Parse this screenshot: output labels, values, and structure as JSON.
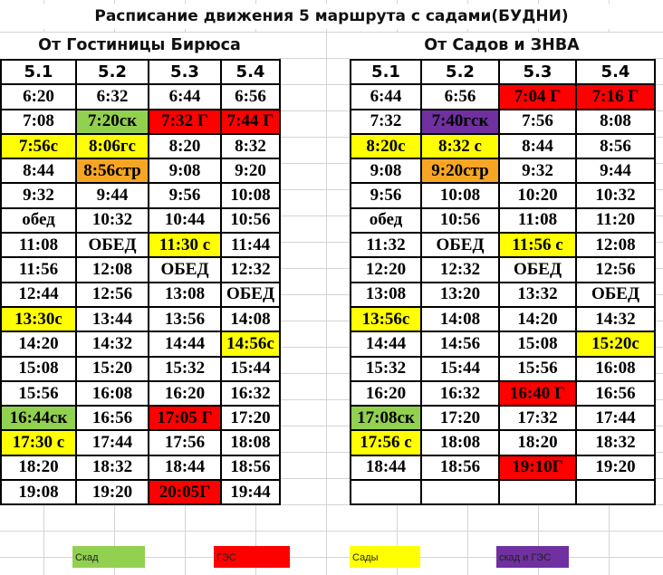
{
  "title": "Расписание движения 5 маршрута с садами(БУДНИ)",
  "left": {
    "heading": "От Гостиницы Бирюса",
    "columns": [
      "5.1",
      "5.2",
      "5.3",
      "5.4"
    ],
    "rows": [
      [
        {
          "t": "6:20"
        },
        {
          "t": "6:32"
        },
        {
          "t": "6:44"
        },
        {
          "t": "6:56"
        }
      ],
      [
        {
          "t": "7:08"
        },
        {
          "t": "7:20ск",
          "c": "green"
        },
        {
          "t": "7:32 Г",
          "c": "red"
        },
        {
          "t": "7:44 Г",
          "c": "red"
        }
      ],
      [
        {
          "t": "7:56с",
          "c": "yellow"
        },
        {
          "t": "8:06гс",
          "c": "yellow"
        },
        {
          "t": "8:20"
        },
        {
          "t": "8:32"
        }
      ],
      [
        {
          "t": "8:44"
        },
        {
          "t": "8:56стр",
          "c": "orange"
        },
        {
          "t": "9:08"
        },
        {
          "t": "9:20"
        }
      ],
      [
        {
          "t": "9:32"
        },
        {
          "t": "9:44"
        },
        {
          "t": "9:56"
        },
        {
          "t": "10:08"
        }
      ],
      [
        {
          "t": "обед"
        },
        {
          "t": "10:32"
        },
        {
          "t": "10:44"
        },
        {
          "t": "10:56"
        }
      ],
      [
        {
          "t": "11:08"
        },
        {
          "t": "ОБЕД"
        },
        {
          "t": "11:30 с",
          "c": "yellow"
        },
        {
          "t": "11:44"
        }
      ],
      [
        {
          "t": "11:56"
        },
        {
          "t": "12:08"
        },
        {
          "t": "ОБЕД"
        },
        {
          "t": "12:32"
        }
      ],
      [
        {
          "t": "12:44"
        },
        {
          "t": "12:56"
        },
        {
          "t": "13:08"
        },
        {
          "t": "ОБЕД"
        }
      ],
      [
        {
          "t": "13:30с",
          "c": "yellow"
        },
        {
          "t": "13:44"
        },
        {
          "t": "13:56"
        },
        {
          "t": "14:08"
        }
      ],
      [
        {
          "t": "14:20"
        },
        {
          "t": "14:32"
        },
        {
          "t": "14:44"
        },
        {
          "t": "14:56с",
          "c": "yellow"
        }
      ],
      [
        {
          "t": "15:08"
        },
        {
          "t": "15:20"
        },
        {
          "t": "15:32"
        },
        {
          "t": "15:44"
        }
      ],
      [
        {
          "t": "15:56"
        },
        {
          "t": "16:08"
        },
        {
          "t": "16:20"
        },
        {
          "t": "16:32"
        }
      ],
      [
        {
          "t": "16:44ск",
          "c": "green"
        },
        {
          "t": "16:56"
        },
        {
          "t": "17:05 Г",
          "c": "red"
        },
        {
          "t": "17:20"
        }
      ],
      [
        {
          "t": "17:30 с",
          "c": "yellow"
        },
        {
          "t": "17:44"
        },
        {
          "t": "17:56"
        },
        {
          "t": "18:08"
        }
      ],
      [
        {
          "t": "18:20"
        },
        {
          "t": "18:32"
        },
        {
          "t": "18:44"
        },
        {
          "t": "18:56"
        }
      ],
      [
        {
          "t": "19:08"
        },
        {
          "t": "19:20"
        },
        {
          "t": "20:05Г",
          "c": "red"
        },
        {
          "t": "19:44"
        }
      ]
    ]
  },
  "right": {
    "heading": "От Садов и ЗНВА",
    "columns": [
      "5.1",
      "5.2",
      "5.3",
      "5.4"
    ],
    "rows": [
      [
        {
          "t": "6:44"
        },
        {
          "t": "6:56"
        },
        {
          "t": "7:04 Г",
          "c": "red"
        },
        {
          "t": "7:16 Г",
          "c": "red"
        }
      ],
      [
        {
          "t": "7:32"
        },
        {
          "t": "7:40гск",
          "c": "purple"
        },
        {
          "t": "7:56"
        },
        {
          "t": "8:08"
        }
      ],
      [
        {
          "t": "8:20с",
          "c": "yellow"
        },
        {
          "t": "8:32 с",
          "c": "yellow"
        },
        {
          "t": "8:44"
        },
        {
          "t": "8:56"
        }
      ],
      [
        {
          "t": "9:08"
        },
        {
          "t": "9:20стр",
          "c": "orange"
        },
        {
          "t": "9:32"
        },
        {
          "t": "9:44"
        }
      ],
      [
        {
          "t": "9:56"
        },
        {
          "t": "10:08"
        },
        {
          "t": "10:20"
        },
        {
          "t": "10:32"
        }
      ],
      [
        {
          "t": "обед"
        },
        {
          "t": "10:56"
        },
        {
          "t": "11:08"
        },
        {
          "t": "11:20"
        }
      ],
      [
        {
          "t": "11:32"
        },
        {
          "t": "ОБЕД"
        },
        {
          "t": "11:56 с",
          "c": "yellow"
        },
        {
          "t": "12:08"
        }
      ],
      [
        {
          "t": "12:20"
        },
        {
          "t": "12:32"
        },
        {
          "t": "ОБЕД"
        },
        {
          "t": "12:56"
        }
      ],
      [
        {
          "t": "13:08"
        },
        {
          "t": "13:20"
        },
        {
          "t": "13:32"
        },
        {
          "t": "ОБЕД"
        }
      ],
      [
        {
          "t": "13:56с",
          "c": "yellow"
        },
        {
          "t": "14:08"
        },
        {
          "t": "14:20"
        },
        {
          "t": "14:32"
        }
      ],
      [
        {
          "t": "14:44"
        },
        {
          "t": "14:56"
        },
        {
          "t": "15:08"
        },
        {
          "t": "15:20с",
          "c": "yellow"
        }
      ],
      [
        {
          "t": "15:32"
        },
        {
          "t": "15:44"
        },
        {
          "t": "15:56"
        },
        {
          "t": "16:08"
        }
      ],
      [
        {
          "t": "16:20"
        },
        {
          "t": "16:32"
        },
        {
          "t": "16:40 Г",
          "c": "red"
        },
        {
          "t": "16:56"
        }
      ],
      [
        {
          "t": "17:08ск",
          "c": "green"
        },
        {
          "t": "17:20"
        },
        {
          "t": "17:32"
        },
        {
          "t": "17:44"
        }
      ],
      [
        {
          "t": "17:56 с",
          "c": "yellow"
        },
        {
          "t": "18:08"
        },
        {
          "t": "18:20"
        },
        {
          "t": "18:32"
        }
      ],
      [
        {
          "t": "18:44"
        },
        {
          "t": "18:56"
        },
        {
          "t": "19:10Г",
          "c": "red"
        },
        {
          "t": "19:20"
        }
      ],
      [
        {
          "t": ""
        },
        {
          "t": ""
        },
        {
          "t": ""
        },
        {
          "t": ""
        }
      ]
    ]
  },
  "legend": [
    {
      "label": "Скад",
      "c": "green"
    },
    {
      "label": "ГЭС",
      "c": "red"
    },
    {
      "label": "Сады",
      "c": "yellow"
    },
    {
      "label": "скад и ГЭС",
      "c": "purple"
    }
  ],
  "colors": {
    "yellow": "#ffff00",
    "green": "#92d050",
    "red": "#ff0000",
    "orange": "#f6a623",
    "purple": "#7030a0"
  }
}
